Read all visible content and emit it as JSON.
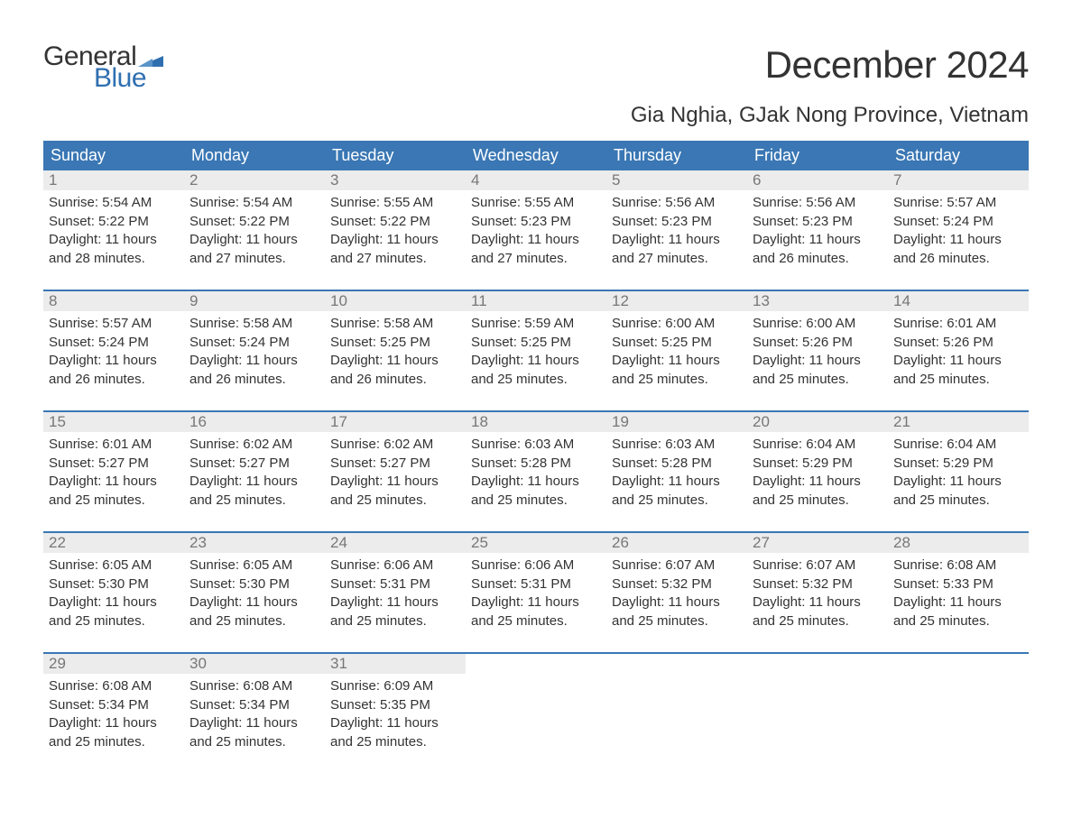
{
  "logo": {
    "text_top": "General",
    "text_bottom": "Blue",
    "flag_color": "#2f6fb0"
  },
  "title": "December 2024",
  "location": "Gia Nghia, GJak Nong Province, Vietnam",
  "colors": {
    "header_bg": "#3a77b4",
    "header_text": "#ffffff",
    "daynum_bg": "#ececec",
    "daynum_text": "#777777",
    "body_text": "#333333",
    "accent": "#2f6fb0",
    "week_border": "#3a77b4",
    "page_bg": "#ffffff"
  },
  "day_headers": [
    "Sunday",
    "Monday",
    "Tuesday",
    "Wednesday",
    "Thursday",
    "Friday",
    "Saturday"
  ],
  "weeks": [
    [
      {
        "n": "1",
        "sr": "Sunrise: 5:54 AM",
        "ss": "Sunset: 5:22 PM",
        "d1": "Daylight: 11 hours",
        "d2": "and 28 minutes."
      },
      {
        "n": "2",
        "sr": "Sunrise: 5:54 AM",
        "ss": "Sunset: 5:22 PM",
        "d1": "Daylight: 11 hours",
        "d2": "and 27 minutes."
      },
      {
        "n": "3",
        "sr": "Sunrise: 5:55 AM",
        "ss": "Sunset: 5:22 PM",
        "d1": "Daylight: 11 hours",
        "d2": "and 27 minutes."
      },
      {
        "n": "4",
        "sr": "Sunrise: 5:55 AM",
        "ss": "Sunset: 5:23 PM",
        "d1": "Daylight: 11 hours",
        "d2": "and 27 minutes."
      },
      {
        "n": "5",
        "sr": "Sunrise: 5:56 AM",
        "ss": "Sunset: 5:23 PM",
        "d1": "Daylight: 11 hours",
        "d2": "and 27 minutes."
      },
      {
        "n": "6",
        "sr": "Sunrise: 5:56 AM",
        "ss": "Sunset: 5:23 PM",
        "d1": "Daylight: 11 hours",
        "d2": "and 26 minutes."
      },
      {
        "n": "7",
        "sr": "Sunrise: 5:57 AM",
        "ss": "Sunset: 5:24 PM",
        "d1": "Daylight: 11 hours",
        "d2": "and 26 minutes."
      }
    ],
    [
      {
        "n": "8",
        "sr": "Sunrise: 5:57 AM",
        "ss": "Sunset: 5:24 PM",
        "d1": "Daylight: 11 hours",
        "d2": "and 26 minutes."
      },
      {
        "n": "9",
        "sr": "Sunrise: 5:58 AM",
        "ss": "Sunset: 5:24 PM",
        "d1": "Daylight: 11 hours",
        "d2": "and 26 minutes."
      },
      {
        "n": "10",
        "sr": "Sunrise: 5:58 AM",
        "ss": "Sunset: 5:25 PM",
        "d1": "Daylight: 11 hours",
        "d2": "and 26 minutes."
      },
      {
        "n": "11",
        "sr": "Sunrise: 5:59 AM",
        "ss": "Sunset: 5:25 PM",
        "d1": "Daylight: 11 hours",
        "d2": "and 25 minutes."
      },
      {
        "n": "12",
        "sr": "Sunrise: 6:00 AM",
        "ss": "Sunset: 5:25 PM",
        "d1": "Daylight: 11 hours",
        "d2": "and 25 minutes."
      },
      {
        "n": "13",
        "sr": "Sunrise: 6:00 AM",
        "ss": "Sunset: 5:26 PM",
        "d1": "Daylight: 11 hours",
        "d2": "and 25 minutes."
      },
      {
        "n": "14",
        "sr": "Sunrise: 6:01 AM",
        "ss": "Sunset: 5:26 PM",
        "d1": "Daylight: 11 hours",
        "d2": "and 25 minutes."
      }
    ],
    [
      {
        "n": "15",
        "sr": "Sunrise: 6:01 AM",
        "ss": "Sunset: 5:27 PM",
        "d1": "Daylight: 11 hours",
        "d2": "and 25 minutes."
      },
      {
        "n": "16",
        "sr": "Sunrise: 6:02 AM",
        "ss": "Sunset: 5:27 PM",
        "d1": "Daylight: 11 hours",
        "d2": "and 25 minutes."
      },
      {
        "n": "17",
        "sr": "Sunrise: 6:02 AM",
        "ss": "Sunset: 5:27 PM",
        "d1": "Daylight: 11 hours",
        "d2": "and 25 minutes."
      },
      {
        "n": "18",
        "sr": "Sunrise: 6:03 AM",
        "ss": "Sunset: 5:28 PM",
        "d1": "Daylight: 11 hours",
        "d2": "and 25 minutes."
      },
      {
        "n": "19",
        "sr": "Sunrise: 6:03 AM",
        "ss": "Sunset: 5:28 PM",
        "d1": "Daylight: 11 hours",
        "d2": "and 25 minutes."
      },
      {
        "n": "20",
        "sr": "Sunrise: 6:04 AM",
        "ss": "Sunset: 5:29 PM",
        "d1": "Daylight: 11 hours",
        "d2": "and 25 minutes."
      },
      {
        "n": "21",
        "sr": "Sunrise: 6:04 AM",
        "ss": "Sunset: 5:29 PM",
        "d1": "Daylight: 11 hours",
        "d2": "and 25 minutes."
      }
    ],
    [
      {
        "n": "22",
        "sr": "Sunrise: 6:05 AM",
        "ss": "Sunset: 5:30 PM",
        "d1": "Daylight: 11 hours",
        "d2": "and 25 minutes."
      },
      {
        "n": "23",
        "sr": "Sunrise: 6:05 AM",
        "ss": "Sunset: 5:30 PM",
        "d1": "Daylight: 11 hours",
        "d2": "and 25 minutes."
      },
      {
        "n": "24",
        "sr": "Sunrise: 6:06 AM",
        "ss": "Sunset: 5:31 PM",
        "d1": "Daylight: 11 hours",
        "d2": "and 25 minutes."
      },
      {
        "n": "25",
        "sr": "Sunrise: 6:06 AM",
        "ss": "Sunset: 5:31 PM",
        "d1": "Daylight: 11 hours",
        "d2": "and 25 minutes."
      },
      {
        "n": "26",
        "sr": "Sunrise: 6:07 AM",
        "ss": "Sunset: 5:32 PM",
        "d1": "Daylight: 11 hours",
        "d2": "and 25 minutes."
      },
      {
        "n": "27",
        "sr": "Sunrise: 6:07 AM",
        "ss": "Sunset: 5:32 PM",
        "d1": "Daylight: 11 hours",
        "d2": "and 25 minutes."
      },
      {
        "n": "28",
        "sr": "Sunrise: 6:08 AM",
        "ss": "Sunset: 5:33 PM",
        "d1": "Daylight: 11 hours",
        "d2": "and 25 minutes."
      }
    ],
    [
      {
        "n": "29",
        "sr": "Sunrise: 6:08 AM",
        "ss": "Sunset: 5:34 PM",
        "d1": "Daylight: 11 hours",
        "d2": "and 25 minutes."
      },
      {
        "n": "30",
        "sr": "Sunrise: 6:08 AM",
        "ss": "Sunset: 5:34 PM",
        "d1": "Daylight: 11 hours",
        "d2": "and 25 minutes."
      },
      {
        "n": "31",
        "sr": "Sunrise: 6:09 AM",
        "ss": "Sunset: 5:35 PM",
        "d1": "Daylight: 11 hours",
        "d2": "and 25 minutes."
      },
      {
        "n": "",
        "sr": "",
        "ss": "",
        "d1": "",
        "d2": ""
      },
      {
        "n": "",
        "sr": "",
        "ss": "",
        "d1": "",
        "d2": ""
      },
      {
        "n": "",
        "sr": "",
        "ss": "",
        "d1": "",
        "d2": ""
      },
      {
        "n": "",
        "sr": "",
        "ss": "",
        "d1": "",
        "d2": ""
      }
    ]
  ]
}
